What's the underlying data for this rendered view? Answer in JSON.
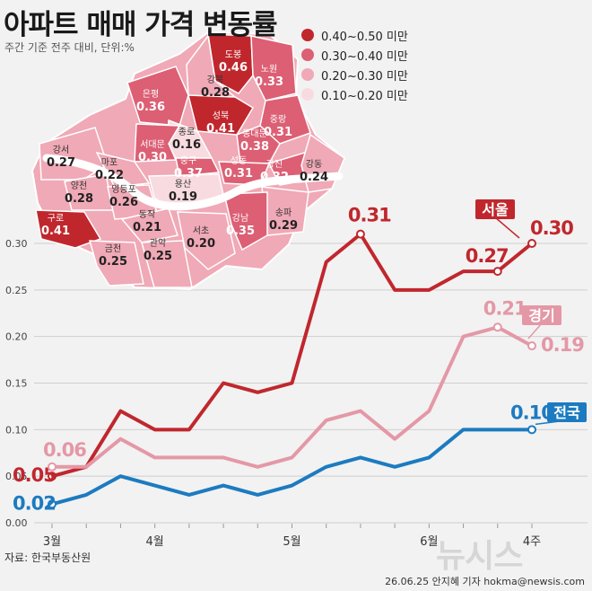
{
  "title": "아파트 매매 가격 변동률",
  "subtitle": "주간 기준 전주 대비, 단위:%",
  "source": "자료: 한국부동산원",
  "credit": "26.06.25 안지혜 기자 hokma@newsis.com",
  "watermark": "뉴시스",
  "colors": {
    "seoul": "#c0272d",
    "gyeonggi": "#e498a6",
    "national": "#1c7bc0",
    "tier1": "#c0272d",
    "tier2": "#dc5f74",
    "tier3": "#f0a9b6",
    "tier4": "#f8dbe0"
  },
  "legend": [
    {
      "label": "0.40~0.50 미만",
      "tier": "tier1"
    },
    {
      "label": "0.30~0.40 미만",
      "tier": "tier2"
    },
    {
      "label": "0.20~0.30 미만",
      "tier": "tier3"
    },
    {
      "label": "0.10~0.20 미만",
      "tier": "tier4"
    }
  ],
  "map_districts": [
    {
      "name": "도봉",
      "value": "0.46"
    },
    {
      "name": "노원",
      "value": "0.33"
    },
    {
      "name": "강북",
      "value": "0.28"
    },
    {
      "name": "은평",
      "value": "0.36"
    },
    {
      "name": "성북",
      "value": "0.41"
    },
    {
      "name": "중랑",
      "value": "0.31"
    },
    {
      "name": "종로",
      "value": "0.16"
    },
    {
      "name": "동대문",
      "value": "0.38"
    },
    {
      "name": "서대문",
      "value": "0.30"
    },
    {
      "name": "중구",
      "value": "0.37"
    },
    {
      "name": "성동",
      "value": "0.31"
    },
    {
      "name": "광진",
      "value": "0.32"
    },
    {
      "name": "강서",
      "value": "0.27"
    },
    {
      "name": "마포",
      "value": "0.22"
    },
    {
      "name": "강동",
      "value": "0.24"
    },
    {
      "name": "양천",
      "value": "0.28"
    },
    {
      "name": "영등포",
      "value": "0.26"
    },
    {
      "name": "용산",
      "value": "0.19"
    },
    {
      "name": "송파",
      "value": "0.29"
    },
    {
      "name": "구로",
      "value": "0.41"
    },
    {
      "name": "동작",
      "value": "0.21"
    },
    {
      "name": "강남",
      "value": "0.35"
    },
    {
      "name": "서초",
      "value": "0.20"
    },
    {
      "name": "금천",
      "value": "0.25"
    },
    {
      "name": "관악",
      "value": "0.25"
    }
  ],
  "chart_data": {
    "type": "line",
    "x": [
      1,
      2,
      3,
      4,
      5,
      6,
      7,
      8,
      9,
      10,
      11,
      12,
      13,
      14,
      15
    ],
    "x_tick_labels": [
      {
        "at": 1,
        "label": "3월"
      },
      {
        "at": 4,
        "label": "4월"
      },
      {
        "at": 8,
        "label": "5월"
      },
      {
        "at": 12,
        "label": "6월"
      },
      {
        "at": 15,
        "label": "4주"
      }
    ],
    "ylim": [
      0,
      0.3
    ],
    "y_ticks": [
      "0.00",
      "0.05",
      "0.10",
      "0.15",
      "0.20",
      "0.25",
      "0.30"
    ],
    "grid": true,
    "series": [
      {
        "name": "서울",
        "color_key": "seoul",
        "values": [
          0.05,
          0.06,
          0.12,
          0.1,
          0.1,
          0.15,
          0.14,
          0.15,
          0.28,
          0.31,
          0.25,
          0.25,
          0.27,
          0.27,
          0.3
        ]
      },
      {
        "name": "경기",
        "color_key": "gyeonggi",
        "values": [
          0.06,
          0.06,
          0.09,
          0.07,
          0.07,
          0.07,
          0.06,
          0.07,
          0.11,
          0.12,
          0.09,
          0.12,
          0.2,
          0.21,
          0.19
        ]
      },
      {
        "name": "전국",
        "color_key": "national",
        "values": [
          0.02,
          0.03,
          0.05,
          0.04,
          0.03,
          0.04,
          0.03,
          0.04,
          0.06,
          0.07,
          0.06,
          0.07,
          0.1,
          0.1,
          0.1
        ]
      }
    ],
    "value_labels": [
      {
        "series": 0,
        "index": 0,
        "text": "0.05"
      },
      {
        "series": 0,
        "index": 9,
        "text": "0.31"
      },
      {
        "series": 0,
        "index": 13,
        "text": "0.27"
      },
      {
        "series": 0,
        "index": 14,
        "text": "0.30"
      },
      {
        "series": 1,
        "index": 0,
        "text": "0.06"
      },
      {
        "series": 1,
        "index": 13,
        "text": "0.21"
      },
      {
        "series": 1,
        "index": 14,
        "text": "0.19"
      },
      {
        "series": 2,
        "index": 0,
        "text": "0.02"
      },
      {
        "series": 2,
        "index": 14,
        "text": "0.10"
      }
    ]
  }
}
